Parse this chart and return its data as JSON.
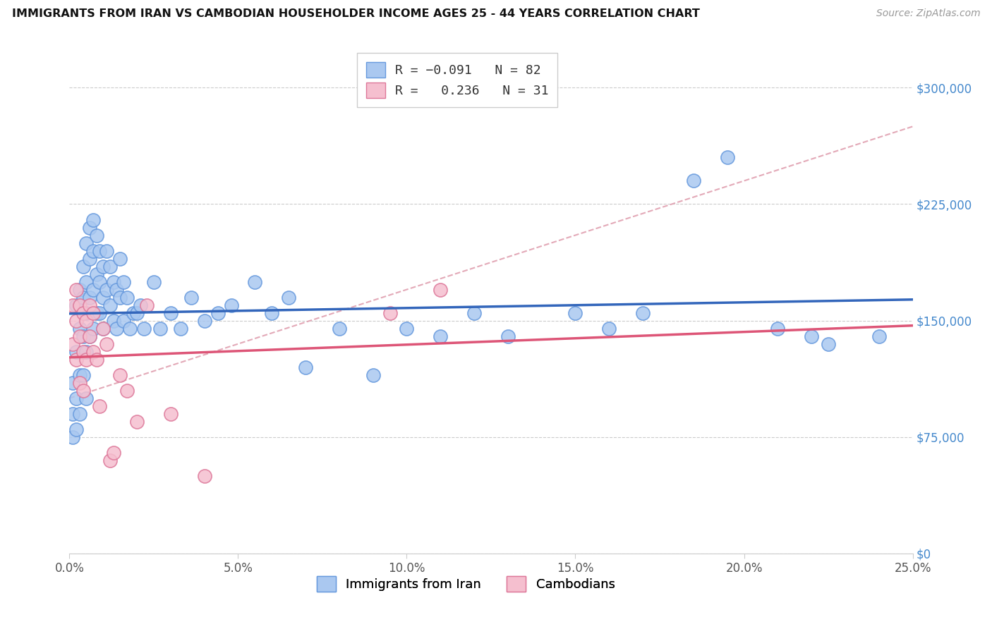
{
  "title": "IMMIGRANTS FROM IRAN VS CAMBODIAN HOUSEHOLDER INCOME AGES 25 - 44 YEARS CORRELATION CHART",
  "source": "Source: ZipAtlas.com",
  "xlabel_vals": [
    0.0,
    0.05,
    0.1,
    0.15,
    0.2,
    0.25
  ],
  "xlabel_ticks": [
    "0.0%",
    "5.0%",
    "10.0%",
    "15.0%",
    "20.0%",
    "25.0%"
  ],
  "ylabel_vals": [
    0,
    75000,
    150000,
    225000,
    300000
  ],
  "ylabel_ticks": [
    "$0",
    "$75,000",
    "$150,000",
    "$225,000",
    "$300,000"
  ],
  "xlim": [
    0.0,
    0.25
  ],
  "ylim": [
    0,
    320000
  ],
  "iran_color": "#aac8f0",
  "iran_edge_color": "#6699dd",
  "cambodian_color": "#f5bfcf",
  "cambodian_edge_color": "#dd7799",
  "iran_trend_color": "#3366bb",
  "cambodian_trend_color": "#dd5577",
  "dashed_color": "#e0a0b0",
  "iran_label": "Immigrants from Iran",
  "cambodian_label": "Cambodians",
  "iran_scatter_x": [
    0.001,
    0.001,
    0.001,
    0.002,
    0.002,
    0.002,
    0.002,
    0.003,
    0.003,
    0.003,
    0.003,
    0.004,
    0.004,
    0.004,
    0.004,
    0.005,
    0.005,
    0.005,
    0.005,
    0.005,
    0.006,
    0.006,
    0.006,
    0.006,
    0.007,
    0.007,
    0.007,
    0.007,
    0.008,
    0.008,
    0.008,
    0.009,
    0.009,
    0.009,
    0.01,
    0.01,
    0.01,
    0.011,
    0.011,
    0.012,
    0.012,
    0.013,
    0.013,
    0.014,
    0.014,
    0.015,
    0.015,
    0.016,
    0.016,
    0.017,
    0.018,
    0.019,
    0.02,
    0.021,
    0.022,
    0.025,
    0.027,
    0.03,
    0.033,
    0.036,
    0.04,
    0.044,
    0.048,
    0.055,
    0.06,
    0.065,
    0.07,
    0.08,
    0.09,
    0.1,
    0.11,
    0.12,
    0.13,
    0.15,
    0.16,
    0.17,
    0.185,
    0.195,
    0.21,
    0.22,
    0.225,
    0.24
  ],
  "iran_scatter_y": [
    110000,
    90000,
    75000,
    160000,
    130000,
    100000,
    80000,
    170000,
    145000,
    115000,
    90000,
    185000,
    165000,
    140000,
    115000,
    200000,
    175000,
    155000,
    130000,
    100000,
    210000,
    190000,
    165000,
    140000,
    215000,
    195000,
    170000,
    145000,
    205000,
    180000,
    155000,
    195000,
    175000,
    155000,
    185000,
    165000,
    145000,
    195000,
    170000,
    185000,
    160000,
    175000,
    150000,
    170000,
    145000,
    190000,
    165000,
    175000,
    150000,
    165000,
    145000,
    155000,
    155000,
    160000,
    145000,
    175000,
    145000,
    155000,
    145000,
    165000,
    150000,
    155000,
    160000,
    175000,
    155000,
    165000,
    120000,
    145000,
    115000,
    145000,
    140000,
    155000,
    140000,
    155000,
    145000,
    155000,
    240000,
    255000,
    145000,
    140000,
    135000,
    140000
  ],
  "cambodian_scatter_x": [
    0.001,
    0.001,
    0.002,
    0.002,
    0.002,
    0.003,
    0.003,
    0.003,
    0.004,
    0.004,
    0.004,
    0.005,
    0.005,
    0.006,
    0.006,
    0.007,
    0.007,
    0.008,
    0.009,
    0.01,
    0.011,
    0.012,
    0.013,
    0.015,
    0.017,
    0.02,
    0.023,
    0.03,
    0.04,
    0.095,
    0.11
  ],
  "cambodian_scatter_y": [
    160000,
    135000,
    170000,
    150000,
    125000,
    160000,
    140000,
    110000,
    155000,
    130000,
    105000,
    150000,
    125000,
    160000,
    140000,
    155000,
    130000,
    125000,
    95000,
    145000,
    135000,
    60000,
    65000,
    115000,
    105000,
    85000,
    160000,
    90000,
    50000,
    155000,
    170000
  ]
}
